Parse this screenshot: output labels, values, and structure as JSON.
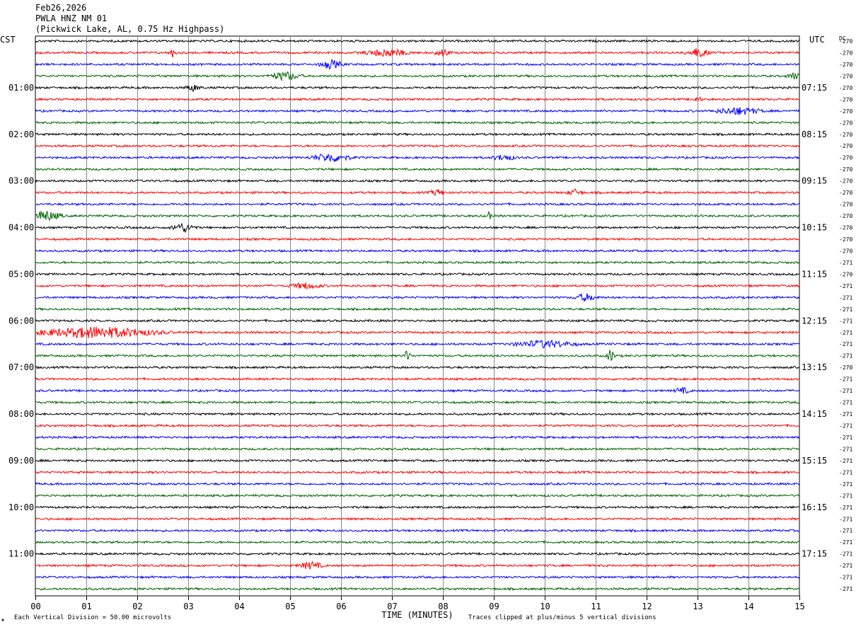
{
  "header": {
    "date": "Feb26,2026",
    "station": "PWLA HNZ NM 01",
    "location": "(Pickwick Lake, AL, 0.75 Hz Highpass)"
  },
  "chart_data": {
    "type": "line",
    "title": "PWLA HNZ NM 01",
    "xlabel": "TIME (MINUTES)",
    "xlim": [
      0,
      15
    ],
    "x_ticks": [
      "00",
      "01",
      "02",
      "03",
      "04",
      "05",
      "06",
      "07",
      "08",
      "09",
      "10",
      "11",
      "12",
      "13",
      "14",
      "15"
    ],
    "left_axis_label": "CST",
    "right_axis_label": "UTC",
    "dc_label": "DC",
    "rows_per_hour": 4,
    "row_minutes": 15,
    "colors": [
      "#000000",
      "#ff0000",
      "#0000ff",
      "#006400"
    ],
    "left_hour_labels": [
      "01:00",
      "02:00",
      "03:00",
      "04:00",
      "05:00",
      "06:00",
      "07:00",
      "08:00",
      "09:00",
      "10:00",
      "11:00"
    ],
    "right_hour_labels": [
      "07:15",
      "08:15",
      "09:15",
      "10:15",
      "11:15",
      "12:15",
      "13:15",
      "14:15",
      "15:15",
      "16:15",
      "17:15"
    ],
    "dc_offsets": [
      "-270",
      "-270",
      "-270",
      "-270",
      "-270",
      "-270",
      "-270",
      "-270",
      "-270",
      "-270",
      "-270",
      "-270",
      "-270",
      "-270",
      "-270",
      "-270",
      "-270",
      "-270",
      "-270",
      "-271",
      "-270",
      "-271",
      "-271",
      "-271",
      "-271",
      "-271",
      "-271",
      "-271",
      "-270",
      "-271",
      "-271",
      "-271",
      "-271",
      "-271",
      "-271",
      "-271",
      "-271",
      "-271",
      "-271",
      "-271",
      "-271",
      "-271",
      "-271",
      "-271",
      "-271",
      "-271",
      "-271",
      "-271"
    ],
    "events": [
      {
        "row": 1,
        "minute": 2.7,
        "amp": 0.6,
        "dur": 0.1
      },
      {
        "row": 1,
        "minute": 6.9,
        "amp": 0.5,
        "dur": 0.6
      },
      {
        "row": 1,
        "minute": 8.0,
        "amp": 0.5,
        "dur": 0.2
      },
      {
        "row": 1,
        "minute": 13.0,
        "amp": 0.6,
        "dur": 0.3
      },
      {
        "row": 2,
        "minute": 5.8,
        "amp": 0.6,
        "dur": 0.3
      },
      {
        "row": 3,
        "minute": 4.9,
        "amp": 0.6,
        "dur": 0.4
      },
      {
        "row": 3,
        "minute": 14.9,
        "amp": 0.4,
        "dur": 0.2
      },
      {
        "row": 4,
        "minute": 3.1,
        "amp": 0.4,
        "dur": 0.2
      },
      {
        "row": 5,
        "minute": 13.0,
        "amp": 0.4,
        "dur": 0.1
      },
      {
        "row": 6,
        "minute": 13.8,
        "amp": 0.5,
        "dur": 0.6
      },
      {
        "row": 10,
        "minute": 5.8,
        "amp": 0.6,
        "dur": 0.5
      },
      {
        "row": 10,
        "minute": 9.2,
        "amp": 0.4,
        "dur": 0.3
      },
      {
        "row": 13,
        "minute": 7.9,
        "amp": 0.4,
        "dur": 0.2
      },
      {
        "row": 13,
        "minute": 10.6,
        "amp": 0.4,
        "dur": 0.2
      },
      {
        "row": 15,
        "minute": 0.2,
        "amp": 0.7,
        "dur": 0.4
      },
      {
        "row": 15,
        "minute": 8.9,
        "amp": 0.5,
        "dur": 0.1
      },
      {
        "row": 16,
        "minute": 2.9,
        "amp": 0.6,
        "dur": 0.3
      },
      {
        "row": 21,
        "minute": 5.3,
        "amp": 0.4,
        "dur": 0.4
      },
      {
        "row": 22,
        "minute": 10.8,
        "amp": 0.5,
        "dur": 0.3
      },
      {
        "row": 25,
        "minute": 1.2,
        "amp": 0.8,
        "dur": 1.6
      },
      {
        "row": 26,
        "minute": 10.0,
        "amp": 0.5,
        "dur": 0.8
      },
      {
        "row": 27,
        "minute": 7.3,
        "amp": 0.7,
        "dur": 0.1
      },
      {
        "row": 27,
        "minute": 11.3,
        "amp": 0.9,
        "dur": 0.1
      },
      {
        "row": 30,
        "minute": 12.7,
        "amp": 0.4,
        "dur": 0.2
      },
      {
        "row": 45,
        "minute": 5.4,
        "amp": 0.5,
        "dur": 0.3
      }
    ],
    "footer_left": "Each Vertical Division =   50.00 microvolts",
    "footer_right": "Traces clipped at plus/minus 5 vertical divisions"
  }
}
